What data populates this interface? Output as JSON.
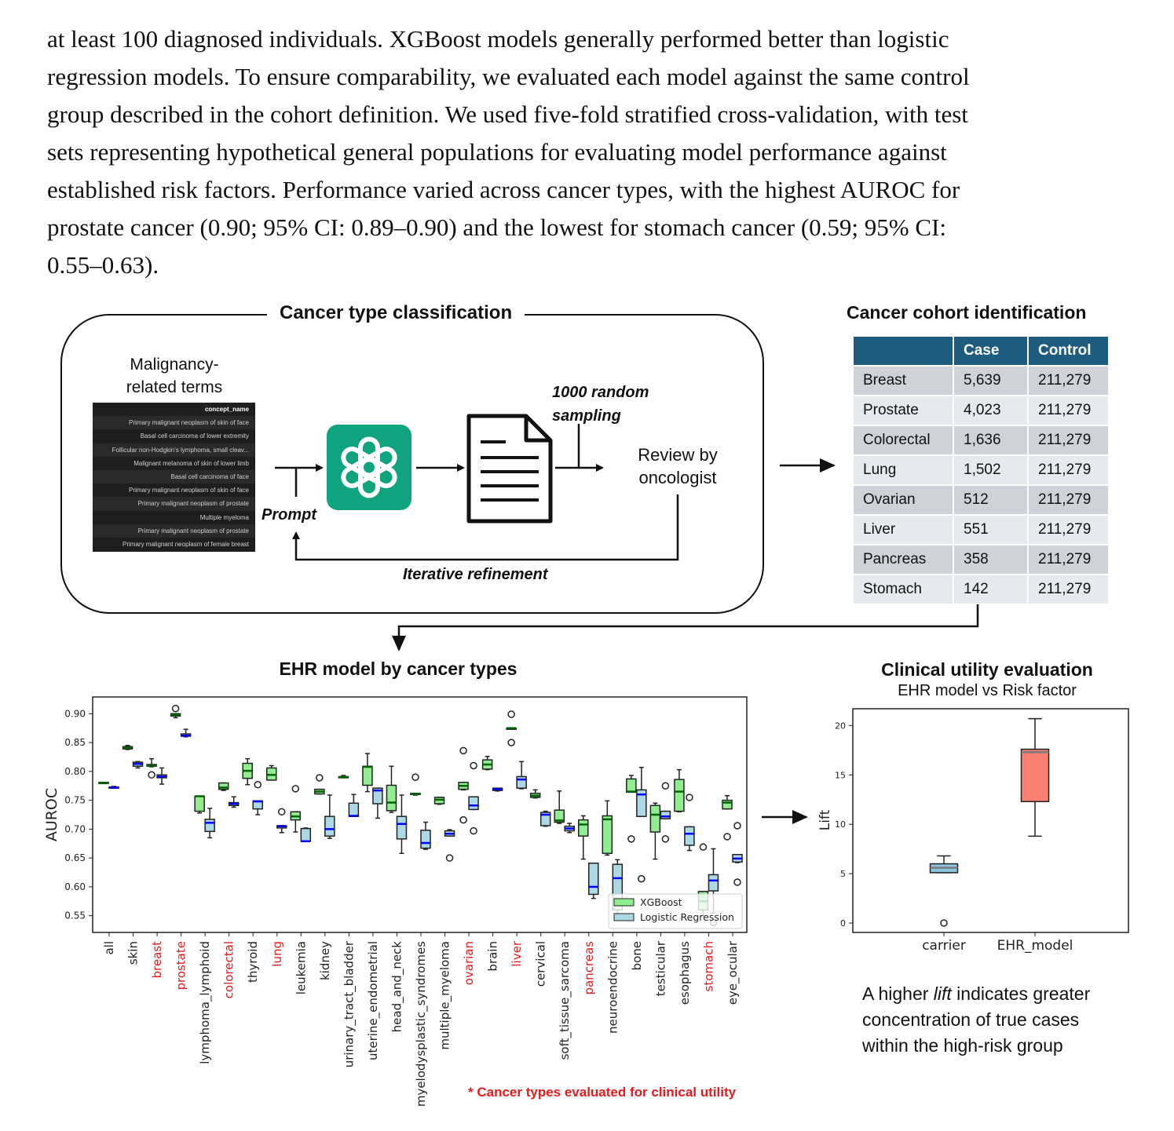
{
  "paragraph": {
    "lines": [
      "at least 100 diagnosed individuals. XGBoost models generally performed better than logistic",
      "regression models. To ensure comparability, we evaluated each model against the same control",
      "group described in the cohort definition. We used five-fold stratified cross-validation, with test",
      "sets representing hypothetical general populations for evaluating model performance against",
      "established risk factors. Performance varied across cancer types, with the highest AUROC for",
      "prostate cancer (0.90; 95% CI: 0.89–0.90) and the lowest for stomach cancer (0.59; 95% CI:",
      "0.55–0.63)."
    ]
  },
  "classification": {
    "title": "Cancer type classification",
    "input_label": [
      "Malignancy-",
      "related terms"
    ],
    "concept_table": {
      "header": "concept_name",
      "rows": [
        "Primary malignant neoplasm of skin of face",
        "Basal cell carcinoma of lower extremity",
        "Follicular non-Hodgkin's lymphoma, small cleav...",
        "Malignant melanoma of skin of lower limb",
        "Basal cell carcinoma of face",
        "Primary malignant neoplasm of skin of face",
        "Primary malignant neoplasm of prostate",
        "Multiple myeloma",
        "Primary malignant neoplasm of prostate",
        "Primary malignant neoplasm of female breast"
      ]
    },
    "prompt_label": "Prompt",
    "sampling_label": [
      "1000 random",
      "sampling"
    ],
    "review_label": [
      "Review by",
      "oncologist"
    ],
    "refinement_label": "Iterative refinement",
    "icons": [
      "openai-logo-icon",
      "document-icon"
    ],
    "logo_color": "#10a37f"
  },
  "cohort": {
    "title": "Cancer cohort identification",
    "columns": [
      "",
      "Case",
      "Control"
    ],
    "rows": [
      [
        "Breast",
        "5,639",
        "211,279"
      ],
      [
        "Prostate",
        "4,023",
        "211,279"
      ],
      [
        "Colorectal",
        "1,636",
        "211,279"
      ],
      [
        "Lung",
        "1,502",
        "211,279"
      ],
      [
        "Ovarian",
        "512",
        "211,279"
      ],
      [
        "Liver",
        "551",
        "211,279"
      ],
      [
        "Pancreas",
        "358",
        "211,279"
      ],
      [
        "Stomach",
        "142",
        "211,279"
      ]
    ],
    "header_color": "#1d5c7e"
  },
  "chart_data": [
    {
      "type": "box",
      "title": "EHR model by cancer types",
      "ylabel": "AUROC",
      "ylim": [
        0.521,
        0.929
      ],
      "yticks": [
        "0.55",
        "0.60",
        "0.65",
        "0.70",
        "0.75",
        "0.80",
        "0.85",
        "0.90"
      ],
      "grid": false,
      "legend": "lower-right",
      "highlight_color": "#e8191a",
      "categories": [
        "all",
        "skin",
        "breast",
        "prostate",
        "lymphoma_lymphoid",
        "colorectal",
        "thyroid",
        "lung",
        "leukemia",
        "kidney",
        "urinary_tract_bladder",
        "uterine_endometrial",
        "head_and_neck",
        "myelodysplastic_syndromes",
        "multiple_myeloma",
        "ovarian",
        "brain",
        "liver",
        "cervical",
        "soft_tissue_sarcoma",
        "pancreas",
        "neuroendocrine",
        "bone",
        "testicular",
        "esophagus",
        "stomach",
        "eye_ocular"
      ],
      "highlighted_categories": [
        "breast",
        "prostate",
        "colorectal",
        "lung",
        "ovarian",
        "liver",
        "pancreas",
        "stomach"
      ],
      "series": [
        {
          "name": "XGBoost",
          "color": "#90ee90",
          "median_color": "#006400",
          "boxes": [
            {
              "stats": [
                0.779,
                0.779,
                0.78,
                0.781,
                0.781
              ],
              "fliers": []
            },
            {
              "stats": [
                0.838,
                0.839,
                0.841,
                0.843,
                0.845
              ],
              "fliers": []
            },
            {
              "stats": [
                0.808,
                0.809,
                0.81,
                0.812,
                0.822
              ],
              "fliers": [
                0.794
              ]
            },
            {
              "stats": [
                0.893,
                0.896,
                0.898,
                0.9,
                0.9
              ],
              "fliers": [
                0.909
              ]
            },
            {
              "stats": [
                0.728,
                0.731,
                0.757,
                0.757,
                0.757
              ],
              "fliers": []
            },
            {
              "stats": [
                0.767,
                0.769,
                0.772,
                0.78,
                0.78
              ],
              "fliers": []
            },
            {
              "stats": [
                0.777,
                0.788,
                0.801,
                0.814,
                0.822
              ],
              "fliers": []
            },
            {
              "stats": [
                0.785,
                0.785,
                0.794,
                0.806,
                0.81
              ],
              "fliers": []
            },
            {
              "stats": [
                0.695,
                0.716,
                0.722,
                0.73,
                0.73
              ],
              "fliers": [
                0.77
              ]
            },
            {
              "stats": [
                0.761,
                0.761,
                0.765,
                0.769,
                0.769
              ],
              "fliers": [
                0.789
              ]
            },
            {
              "stats": [
                0.789,
                0.789,
                0.79,
                0.791,
                0.793
              ],
              "fliers": []
            },
            {
              "stats": [
                0.765,
                0.776,
                0.808,
                0.809,
                0.831
              ],
              "fliers": []
            },
            {
              "stats": [
                0.729,
                0.732,
                0.746,
                0.776,
                0.809
              ],
              "fliers": []
            },
            {
              "stats": [
                0.759,
                0.76,
                0.761,
                0.762,
                0.762
              ],
              "fliers": [
                0.79
              ]
            },
            {
              "stats": [
                0.743,
                0.744,
                0.751,
                0.755,
                0.755
              ],
              "fliers": []
            },
            {
              "stats": [
                0.768,
                0.769,
                0.775,
                0.781,
                0.781
              ],
              "fliers": [
                0.836,
                0.716
              ]
            },
            {
              "stats": [
                0.803,
                0.804,
                0.812,
                0.82,
                0.826
              ],
              "fliers": []
            },
            {
              "stats": [
                0.874,
                0.874,
                0.875,
                0.875,
                0.875
              ],
              "fliers": [
                0.899,
                0.85
              ]
            },
            {
              "stats": [
                0.754,
                0.755,
                0.758,
                0.762,
                0.768
              ],
              "fliers": []
            },
            {
              "stats": [
                0.71,
                0.712,
                0.715,
                0.733,
                0.766
              ],
              "fliers": []
            },
            {
              "stats": [
                0.648,
                0.688,
                0.708,
                0.716,
                0.723
              ],
              "fliers": []
            },
            {
              "stats": [
                0.655,
                0.658,
                0.717,
                0.723,
                0.749
              ],
              "fliers": []
            },
            {
              "stats": [
                0.764,
                0.764,
                0.765,
                0.787,
                0.793
              ],
              "fliers": [
                0.683
              ]
            },
            {
              "stats": [
                0.648,
                0.695,
                0.725,
                0.741,
                0.745
              ],
              "fliers": []
            },
            {
              "stats": [
                0.73,
                0.731,
                0.765,
                0.786,
                0.803
              ],
              "fliers": []
            },
            {
              "stats": [
                0.55,
                0.56,
                0.575,
                0.592,
                0.592
              ],
              "fliers": [
                0.669
              ]
            },
            {
              "stats": [
                0.735,
                0.735,
                0.746,
                0.75,
                0.758
              ],
              "fliers": [
                0.687
              ]
            }
          ]
        },
        {
          "name": "Logistic Regression",
          "color": "#add8e6",
          "median_color": "#0000ff",
          "boxes": [
            {
              "stats": [
                0.771,
                0.771,
                0.772,
                0.773,
                0.774
              ],
              "fliers": []
            },
            {
              "stats": [
                0.806,
                0.809,
                0.813,
                0.816,
                0.817
              ],
              "fliers": []
            },
            {
              "stats": [
                0.778,
                0.789,
                0.791,
                0.794,
                0.806
              ],
              "fliers": []
            },
            {
              "stats": [
                0.86,
                0.861,
                0.862,
                0.865,
                0.873
              ],
              "fliers": []
            },
            {
              "stats": [
                0.685,
                0.696,
                0.711,
                0.717,
                0.736
              ],
              "fliers": []
            },
            {
              "stats": [
                0.738,
                0.741,
                0.744,
                0.746,
                0.756
              ],
              "fliers": []
            },
            {
              "stats": [
                0.725,
                0.735,
                0.748,
                0.749,
                0.749
              ],
              "fliers": [
                0.777
              ]
            },
            {
              "stats": [
                0.694,
                0.702,
                0.705,
                0.706,
                0.706
              ],
              "fliers": [
                0.73
              ]
            },
            {
              "stats": [
                0.679,
                0.679,
                0.679,
                0.701,
                0.702
              ],
              "fliers": []
            },
            {
              "stats": [
                0.684,
                0.688,
                0.7,
                0.722,
                0.759
              ],
              "fliers": []
            },
            {
              "stats": [
                0.722,
                0.722,
                0.723,
                0.745,
                0.76
              ],
              "fliers": []
            },
            {
              "stats": [
                0.719,
                0.744,
                0.767,
                0.771,
                0.771
              ],
              "fliers": []
            },
            {
              "stats": [
                0.658,
                0.683,
                0.709,
                0.722,
                0.759
              ],
              "fliers": []
            },
            {
              "stats": [
                0.665,
                0.667,
                0.676,
                0.698,
                0.712
              ],
              "fliers": []
            },
            {
              "stats": [
                0.688,
                0.688,
                0.692,
                0.697,
                0.699
              ],
              "fliers": [
                0.65
              ]
            },
            {
              "stats": [
                0.734,
                0.734,
                0.741,
                0.756,
                0.756
              ],
              "fliers": [
                0.81,
                0.697
              ]
            },
            {
              "stats": [
                0.766,
                0.767,
                0.769,
                0.771,
                0.771
              ],
              "fliers": []
            },
            {
              "stats": [
                0.77,
                0.771,
                0.786,
                0.791,
                0.817
              ],
              "fliers": []
            },
            {
              "stats": [
                0.705,
                0.706,
                0.725,
                0.729,
                0.731
              ],
              "fliers": []
            },
            {
              "stats": [
                0.694,
                0.697,
                0.701,
                0.705,
                0.71
              ],
              "fliers": []
            },
            {
              "stats": [
                0.58,
                0.587,
                0.6,
                0.641,
                0.641
              ],
              "fliers": []
            },
            {
              "stats": [
                0.552,
                0.56,
                0.615,
                0.639,
                0.647
              ],
              "fliers": []
            },
            {
              "stats": [
                0.722,
                0.722,
                0.76,
                0.768,
                0.807
              ],
              "fliers": [
                0.614
              ]
            },
            {
              "stats": [
                0.718,
                0.718,
                0.722,
                0.731,
                0.731
              ],
              "fliers": [
                0.775,
                0.683
              ]
            },
            {
              "stats": [
                0.663,
                0.672,
                0.692,
                0.704,
                0.704
              ],
              "fliers": [
                0.755
              ]
            },
            {
              "stats": [
                0.555,
                0.593,
                0.611,
                0.621,
                0.666
              ],
              "fliers": [
                0.538
              ]
            },
            {
              "stats": [
                0.642,
                0.643,
                0.649,
                0.656,
                0.656
              ],
              "fliers": [
                0.706,
                0.608
              ]
            }
          ]
        }
      ],
      "note": "* Cancer types evaluated for clinical utility"
    },
    {
      "type": "box",
      "title": "Clinical utility evaluation",
      "subtitle": "EHR model vs Risk factor",
      "ylabel": "Lift",
      "ylim": [
        -0.95,
        21.7
      ],
      "yticks": [
        "0",
        "5",
        "10",
        "15",
        "20"
      ],
      "grid": false,
      "categories": [
        "carrier",
        "EHR_model"
      ],
      "boxes": [
        {
          "stats": [
            5.1,
            5.1,
            5.6,
            6.0,
            6.8
          ],
          "fliers": [
            0
          ],
          "color": "#89c4dc"
        },
        {
          "stats": [
            8.8,
            12.3,
            17.3,
            17.6,
            20.7
          ],
          "fliers": [],
          "color": "#fa8072"
        }
      ],
      "median_color": "#7a7a7a"
    }
  ],
  "caption": {
    "line1_pre": "A higher ",
    "line1_em": "lift",
    "line1_post": " indicates greater",
    "line2": "concentration of true cases",
    "line3": "within the high-risk group"
  }
}
